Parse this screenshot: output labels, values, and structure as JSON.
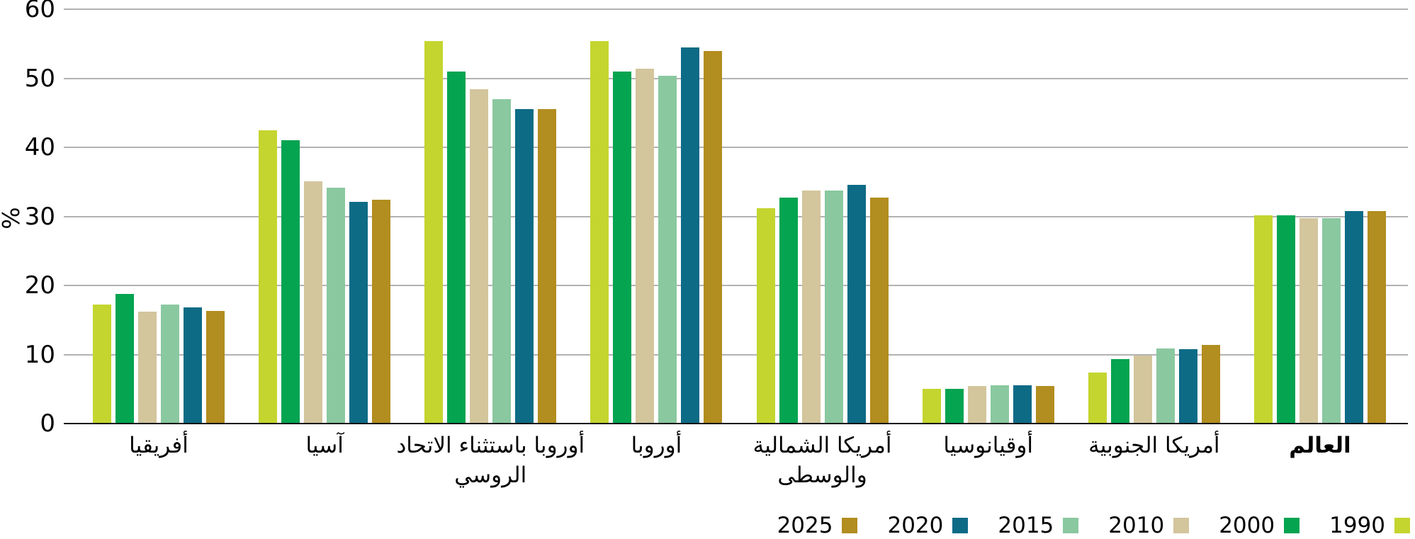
{
  "chart_data": {
    "type": "bar",
    "title": "",
    "xlabel": "",
    "ylabel": "%",
    "ylim": [
      0,
      60
    ],
    "yticks": [
      0,
      10,
      20,
      30,
      40,
      50,
      60
    ],
    "grid": "horizontal",
    "legend_position": "bottom-right",
    "legend_order": [
      "2025",
      "2020",
      "2015",
      "2010",
      "2000",
      "1990"
    ],
    "categories": [
      {
        "label": "أفريقيا",
        "lines": [
          "أفريقيا"
        ],
        "bold": false
      },
      {
        "label": "آسيا",
        "lines": [
          "آسيا"
        ],
        "bold": false
      },
      {
        "label": "أوروبا باستثناء الاتحاد الروسي",
        "lines": [
          "أوروبا باستثناء الاتحاد",
          "الروسي"
        ],
        "bold": false
      },
      {
        "label": "أوروبا",
        "lines": [
          "أوروبا"
        ],
        "bold": false
      },
      {
        "label": "أمريكا الشمالية والوسطى",
        "lines": [
          "أمريكا الشمالية",
          "والوسطى"
        ],
        "bold": false
      },
      {
        "label": "أوقيانوسيا",
        "lines": [
          "أوقيانوسيا"
        ],
        "bold": false
      },
      {
        "label": "أمريكا الجنوبية",
        "lines": [
          "أمريكا الجنوبية"
        ],
        "bold": false
      },
      {
        "label": "العالم",
        "lines": [
          "العالم"
        ],
        "bold": true
      }
    ],
    "series": [
      {
        "name": "1990",
        "color": "#c4d52f",
        "values": [
          17.2,
          42.5,
          55.4,
          55.4,
          31.2,
          5.0,
          7.4,
          30.2
        ]
      },
      {
        "name": "2000",
        "color": "#04a451",
        "values": [
          18.8,
          41.0,
          51.0,
          51.0,
          32.7,
          5.0,
          9.3,
          30.2
        ]
      },
      {
        "name": "2010",
        "color": "#d3c59c",
        "values": [
          16.2,
          35.1,
          48.4,
          51.4,
          33.7,
          5.4,
          9.8,
          29.7
        ]
      },
      {
        "name": "2015",
        "color": "#8ac8a0",
        "values": [
          17.2,
          34.2,
          47.0,
          50.4,
          33.7,
          5.5,
          10.9,
          29.7
        ]
      },
      {
        "name": "2020",
        "color": "#0d6b86",
        "values": [
          16.8,
          32.1,
          45.5,
          54.5,
          34.6,
          5.5,
          10.8,
          30.8
        ]
      },
      {
        "name": "2025",
        "color": "#b28d1f",
        "values": [
          16.3,
          32.4,
          45.5,
          53.9,
          32.7,
          5.4,
          11.4,
          30.8
        ]
      }
    ],
    "colors": {
      "gridline": "#b2b2b2",
      "axis": "#141414",
      "text": "#000000"
    }
  }
}
